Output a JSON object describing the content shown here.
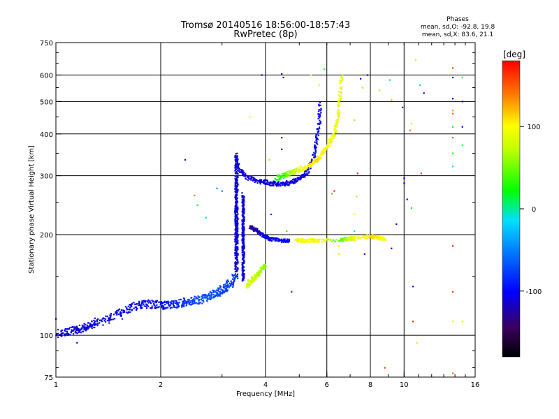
{
  "header": {
    "title": "Tromsø 20140516 18:56:00-18:57:43",
    "subtitle": "RwPretec (8p)"
  },
  "stats": {
    "heading": "Phases",
    "line_o": "mean, sd,O: -92.8, 19.8",
    "line_x": "mean, sd,X: 83.6, 21.1"
  },
  "colorbar": {
    "label": "[deg]",
    "range": [
      -180,
      180
    ],
    "ticks": [
      {
        "value": 100,
        "label": "100"
      },
      {
        "value": 0,
        "label": "0"
      },
      {
        "value": -100,
        "label": "-100"
      }
    ]
  },
  "chart_data": {
    "type": "scatter",
    "title": "Tromsø 20140516 18:56:00-18:57:43",
    "subtitle": "RwPretec (8p)",
    "xlabel": "Frequency [MHz]",
    "ylabel": "Stationary phase Virtual Height [km]",
    "xscale": "log",
    "yscale": "log",
    "xlim": [
      1,
      16
    ],
    "ylim": [
      75,
      750
    ],
    "xticks": [
      {
        "value": 1,
        "label": "1"
      },
      {
        "value": 2,
        "label": "2"
      },
      {
        "value": 4,
        "label": "4"
      },
      {
        "value": 6,
        "label": "6"
      },
      {
        "value": 8,
        "label": "8"
      },
      {
        "value": 10,
        "label": "10"
      },
      {
        "value": 16,
        "label": "16"
      }
    ],
    "yticks": [
      {
        "value": 75,
        "label": "75"
      },
      {
        "value": 100,
        "label": "100"
      },
      {
        "value": 200,
        "label": "200"
      },
      {
        "value": 300,
        "label": "300"
      },
      {
        "value": 400,
        "label": "400"
      },
      {
        "value": 500,
        "label": "500"
      },
      {
        "value": 600,
        "label": "600"
      },
      {
        "value": 750,
        "label": "750"
      }
    ],
    "grid_x": [
      2,
      4,
      6,
      8,
      10
    ],
    "grid_y": [
      100,
      200,
      300,
      400,
      500,
      600
    ],
    "color_by": "phase [deg]",
    "traces": [
      {
        "x": [
          1.0,
          1.05,
          1.1,
          1.15,
          1.2,
          1.25,
          1.3,
          1.4,
          1.5,
          1.6,
          1.7,
          1.8,
          1.9,
          2.0,
          2.1,
          2.2,
          2.3,
          2.4,
          2.5,
          2.6,
          2.7,
          2.8,
          2.9,
          3.0,
          3.1,
          3.2,
          3.3
        ],
        "y": [
          101,
          102,
          103,
          104,
          105,
          107,
          109,
          112,
          116,
          120,
          123,
          124,
          124,
          123,
          123,
          124,
          125,
          126,
          127,
          128,
          130,
          132,
          134,
          137,
          140,
          145,
          152
        ],
        "phase": [
          -110,
          -110,
          -110,
          -110,
          -108,
          -108,
          -106,
          -105,
          -104,
          -103,
          -102,
          -100,
          -98,
          -96,
          -92,
          -88,
          -84,
          -80,
          -76,
          -72,
          -70,
          -70,
          -72,
          -75,
          -78,
          -82,
          -86
        ],
        "scatter": 0.035
      },
      {
        "x": [
          3.3,
          3.3,
          3.3,
          3.3,
          3.3,
          3.3,
          3.3,
          3.3,
          3.3,
          3.3,
          3.3,
          3.3,
          3.3,
          3.3,
          3.3,
          3.3
        ],
        "y": [
          155,
          165,
          175,
          185,
          195,
          205,
          215,
          225,
          235,
          245,
          260,
          275,
          290,
          310,
          330,
          350
        ],
        "phase": [
          -108,
          -108,
          -108,
          -108,
          -108,
          -108,
          -108,
          -108,
          -108,
          -108,
          -108,
          -108,
          -108,
          -108,
          -108,
          -108
        ],
        "scatter": 0.02
      },
      {
        "x": [
          3.45,
          3.45,
          3.45,
          3.45,
          3.45,
          3.45,
          3.45,
          3.45,
          3.45,
          3.45,
          3.45
        ],
        "y": [
          145,
          155,
          165,
          175,
          185,
          195,
          205,
          220,
          235,
          250,
          265
        ],
        "phase": [
          -110,
          -110,
          -110,
          -110,
          -110,
          -110,
          -110,
          -110,
          -110,
          -110,
          -110
        ],
        "scatter": 0.015
      },
      {
        "x": [
          3.3,
          3.4,
          3.5,
          3.7,
          3.9,
          4.1,
          4.3,
          4.5,
          4.7,
          4.9,
          5.1,
          5.3,
          5.5,
          5.6,
          5.7,
          5.75
        ],
        "y": [
          330,
          310,
          298,
          292,
          288,
          285,
          284,
          284,
          286,
          290,
          298,
          312,
          340,
          380,
          430,
          500
        ],
        "phase": [
          -110,
          -110,
          -110,
          -110,
          -110,
          -110,
          -110,
          -110,
          -110,
          -110,
          -110,
          -105,
          -105,
          -105,
          -105,
          -105
        ],
        "scatter": 0.02
      },
      {
        "x": [
          4.3,
          4.5,
          4.7,
          4.9,
          5.1,
          5.3,
          5.5,
          5.7,
          5.9,
          6.1,
          6.3,
          6.4,
          6.5,
          6.55,
          6.6
        ],
        "y": [
          295,
          300,
          305,
          310,
          315,
          320,
          330,
          340,
          355,
          375,
          400,
          430,
          470,
          530,
          600
        ],
        "phase": [
          20,
          40,
          60,
          80,
          95,
          100,
          105,
          110,
          100,
          95,
          90,
          90,
          90,
          90,
          90
        ],
        "scatter": 0.02
      },
      {
        "x": [
          3.55,
          3.6,
          3.7,
          3.8,
          3.9,
          4.0
        ],
        "y": [
          140,
          145,
          148,
          152,
          157,
          162
        ],
        "phase": [
          85,
          80,
          75,
          70,
          65,
          60
        ],
        "scatter": 0.02
      },
      {
        "x": [
          3.6,
          3.7,
          3.8,
          3.9,
          4.0,
          4.1,
          4.3,
          4.5,
          4.7
        ],
        "y": [
          212,
          208,
          205,
          200,
          197,
          194,
          193,
          192,
          192
        ],
        "phase": [
          -130,
          -130,
          -120,
          -115,
          -110,
          -105,
          -100,
          -100,
          -100
        ],
        "scatter": 0.015
      },
      {
        "x": [
          4.9,
          5.1,
          5.3,
          5.5,
          5.7,
          6.6,
          6.8,
          7.0,
          7.2,
          8.0,
          8.2,
          8.4,
          8.6,
          8.8
        ],
        "y": [
          192,
          192,
          192,
          192,
          192,
          193,
          194,
          195,
          195,
          198,
          197,
          196,
          195,
          194
        ],
        "phase": [
          95,
          95,
          95,
          95,
          95,
          40,
          60,
          80,
          90,
          105,
          110,
          105,
          100,
          95
        ],
        "scatter": 0.015
      }
    ],
    "points": [
      {
        "x": 1.0,
        "y": 112,
        "phase": -110
      },
      {
        "x": 1.15,
        "y": 95,
        "phase": -110
      },
      {
        "x": 1.55,
        "y": 112,
        "phase": -80
      },
      {
        "x": 2.35,
        "y": 335,
        "phase": -110
      },
      {
        "x": 2.5,
        "y": 262,
        "phase": 140
      },
      {
        "x": 2.55,
        "y": 245,
        "phase": 10
      },
      {
        "x": 2.7,
        "y": 225,
        "phase": -20
      },
      {
        "x": 2.9,
        "y": 275,
        "phase": -40
      },
      {
        "x": 3.0,
        "y": 270,
        "phase": -50
      },
      {
        "x": 3.6,
        "y": 450,
        "phase": 100
      },
      {
        "x": 3.9,
        "y": 600,
        "phase": -110
      },
      {
        "x": 4.45,
        "y": 605,
        "phase": -110
      },
      {
        "x": 4.5,
        "y": 590,
        "phase": -110
      },
      {
        "x": 4.45,
        "y": 390,
        "phase": -110
      },
      {
        "x": 4.45,
        "y": 360,
        "phase": -110
      },
      {
        "x": 4.1,
        "y": 335,
        "phase": 60
      },
      {
        "x": 4.15,
        "y": 230,
        "phase": -90
      },
      {
        "x": 4.6,
        "y": 205,
        "phase": 40
      },
      {
        "x": 4.75,
        "y": 135,
        "phase": -80
      },
      {
        "x": 5.4,
        "y": 600,
        "phase": 100
      },
      {
        "x": 5.7,
        "y": 560,
        "phase": 100
      },
      {
        "x": 5.9,
        "y": 625,
        "phase": 30
      },
      {
        "x": 6.2,
        "y": 265,
        "phase": 140
      },
      {
        "x": 6.3,
        "y": 270,
        "phase": 170
      },
      {
        "x": 6.5,
        "y": 185,
        "phase": 100
      },
      {
        "x": 6.5,
        "y": 175,
        "phase": 90
      },
      {
        "x": 7.2,
        "y": 440,
        "phase": 60
      },
      {
        "x": 7.2,
        "y": 230,
        "phase": 100
      },
      {
        "x": 7.3,
        "y": 260,
        "phase": 60
      },
      {
        "x": 7.35,
        "y": 305,
        "phase": 170
      },
      {
        "x": 7.2,
        "y": 205,
        "phase": 0
      },
      {
        "x": 7.5,
        "y": 585,
        "phase": -100
      },
      {
        "x": 7.6,
        "y": 550,
        "phase": 60
      },
      {
        "x": 7.7,
        "y": 175,
        "phase": -110
      },
      {
        "x": 7.85,
        "y": 600,
        "phase": -110
      },
      {
        "x": 8.5,
        "y": 540,
        "phase": 60
      },
      {
        "x": 9.1,
        "y": 580,
        "phase": 0
      },
      {
        "x": 9.2,
        "y": 505,
        "phase": 120
      },
      {
        "x": 8.8,
        "y": 80,
        "phase": 160
      },
      {
        "x": 9.2,
        "y": 182,
        "phase": -110
      },
      {
        "x": 9.5,
        "y": 215,
        "phase": -110
      },
      {
        "x": 9.9,
        "y": 480,
        "phase": -110
      },
      {
        "x": 10.0,
        "y": 295,
        "phase": -110
      },
      {
        "x": 10.0,
        "y": 285,
        "phase": -110
      },
      {
        "x": 10.2,
        "y": 255,
        "phase": -110
      },
      {
        "x": 10.4,
        "y": 410,
        "phase": 140
      },
      {
        "x": 10.5,
        "y": 430,
        "phase": 110
      },
      {
        "x": 10.5,
        "y": 240,
        "phase": 20
      },
      {
        "x": 10.6,
        "y": 110,
        "phase": 170
      },
      {
        "x": 10.6,
        "y": 140,
        "phase": -110
      },
      {
        "x": 10.8,
        "y": 665,
        "phase": 80
      },
      {
        "x": 10.9,
        "y": 95,
        "phase": 110
      },
      {
        "x": 11.1,
        "y": 560,
        "phase": -10
      },
      {
        "x": 11.2,
        "y": 305,
        "phase": 160
      },
      {
        "x": 11.4,
        "y": 530,
        "phase": -110
      },
      {
        "x": 13.8,
        "y": 630,
        "phase": 150
      },
      {
        "x": 13.8,
        "y": 590,
        "phase": -110
      },
      {
        "x": 13.8,
        "y": 510,
        "phase": -110
      },
      {
        "x": 13.8,
        "y": 470,
        "phase": 130
      },
      {
        "x": 13.8,
        "y": 460,
        "phase": 150
      },
      {
        "x": 13.8,
        "y": 420,
        "phase": 20
      },
      {
        "x": 13.8,
        "y": 390,
        "phase": 150
      },
      {
        "x": 13.8,
        "y": 350,
        "phase": 30
      },
      {
        "x": 13.8,
        "y": 320,
        "phase": -20
      },
      {
        "x": 13.8,
        "y": 185,
        "phase": 170
      },
      {
        "x": 13.8,
        "y": 135,
        "phase": 160
      },
      {
        "x": 13.8,
        "y": 110,
        "phase": 90
      },
      {
        "x": 13.8,
        "y": 77,
        "phase": 150
      },
      {
        "x": 14.7,
        "y": 590,
        "phase": 10
      },
      {
        "x": 14.7,
        "y": 500,
        "phase": -110
      },
      {
        "x": 14.7,
        "y": 420,
        "phase": -110
      },
      {
        "x": 14.7,
        "y": 370,
        "phase": 20
      },
      {
        "x": 14.7,
        "y": 110,
        "phase": 80
      }
    ]
  }
}
